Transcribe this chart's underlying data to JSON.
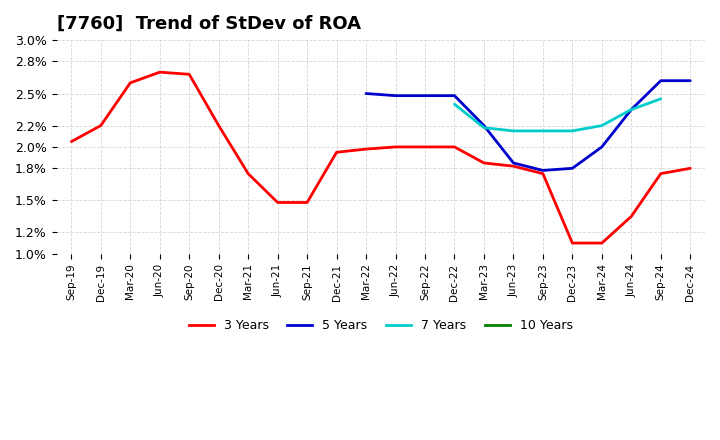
{
  "title": "[7760]  Trend of StDev of ROA",
  "background_color": "#ffffff",
  "plot_bg_color": "#ffffff",
  "grid_color": "#cccccc",
  "ylim": [
    0.01,
    0.03
  ],
  "yticks": [
    0.01,
    0.012,
    0.015,
    0.018,
    0.02,
    0.022,
    0.025,
    0.028,
    0.03
  ],
  "ytick_labels": [
    "1.0%",
    "1.2%",
    "1.5%",
    "1.8%",
    "2.0%",
    "2.2%",
    "2.5%",
    "2.8%",
    "3.0%"
  ],
  "x_labels": [
    "Sep-19",
    "Dec-19",
    "Mar-20",
    "Jun-20",
    "Sep-20",
    "Dec-20",
    "Mar-21",
    "Jun-21",
    "Sep-21",
    "Dec-21",
    "Mar-22",
    "Jun-22",
    "Sep-22",
    "Dec-22",
    "Mar-23",
    "Jun-23",
    "Sep-23",
    "Dec-23",
    "Mar-24",
    "Jun-24",
    "Sep-24",
    "Dec-24"
  ],
  "series": {
    "3 Years": {
      "color": "#ff0000",
      "linewidth": 2.0,
      "values": [
        0.0205,
        0.022,
        0.026,
        0.027,
        0.0268,
        0.022,
        0.0175,
        0.0148,
        0.0148,
        0.0195,
        0.0198,
        0.02,
        0.02,
        0.02,
        0.0185,
        0.0182,
        0.0175,
        0.011,
        0.011,
        0.0135,
        0.0175,
        0.018
      ]
    },
    "5 Years": {
      "color": "#0000cc",
      "linewidth": 2.0,
      "values": [
        null,
        null,
        null,
        null,
        null,
        null,
        null,
        null,
        null,
        null,
        0.025,
        0.0248,
        0.0248,
        0.0248,
        0.022,
        0.0185,
        0.0178,
        0.018,
        0.02,
        0.0235,
        0.0262,
        0.0262
      ]
    },
    "7 Years": {
      "color": "#00cccc",
      "linewidth": 2.0,
      "values": [
        null,
        null,
        null,
        null,
        null,
        null,
        null,
        null,
        null,
        null,
        null,
        null,
        null,
        0.024,
        0.0218,
        0.0215,
        0.0215,
        0.0215,
        0.022,
        0.0235,
        0.0245,
        null
      ]
    },
    "10 Years": {
      "color": "#008000",
      "linewidth": 2.0,
      "values": [
        null,
        null,
        null,
        null,
        null,
        null,
        null,
        null,
        null,
        null,
        null,
        null,
        null,
        null,
        null,
        null,
        null,
        null,
        null,
        null,
        null,
        null
      ]
    }
  },
  "legend_labels": [
    "3 Years",
    "5 Years",
    "7 Years",
    "10 Years"
  ],
  "legend_colors": [
    "#ff0000",
    "#0000cc",
    "#00cccc",
    "#008000"
  ]
}
